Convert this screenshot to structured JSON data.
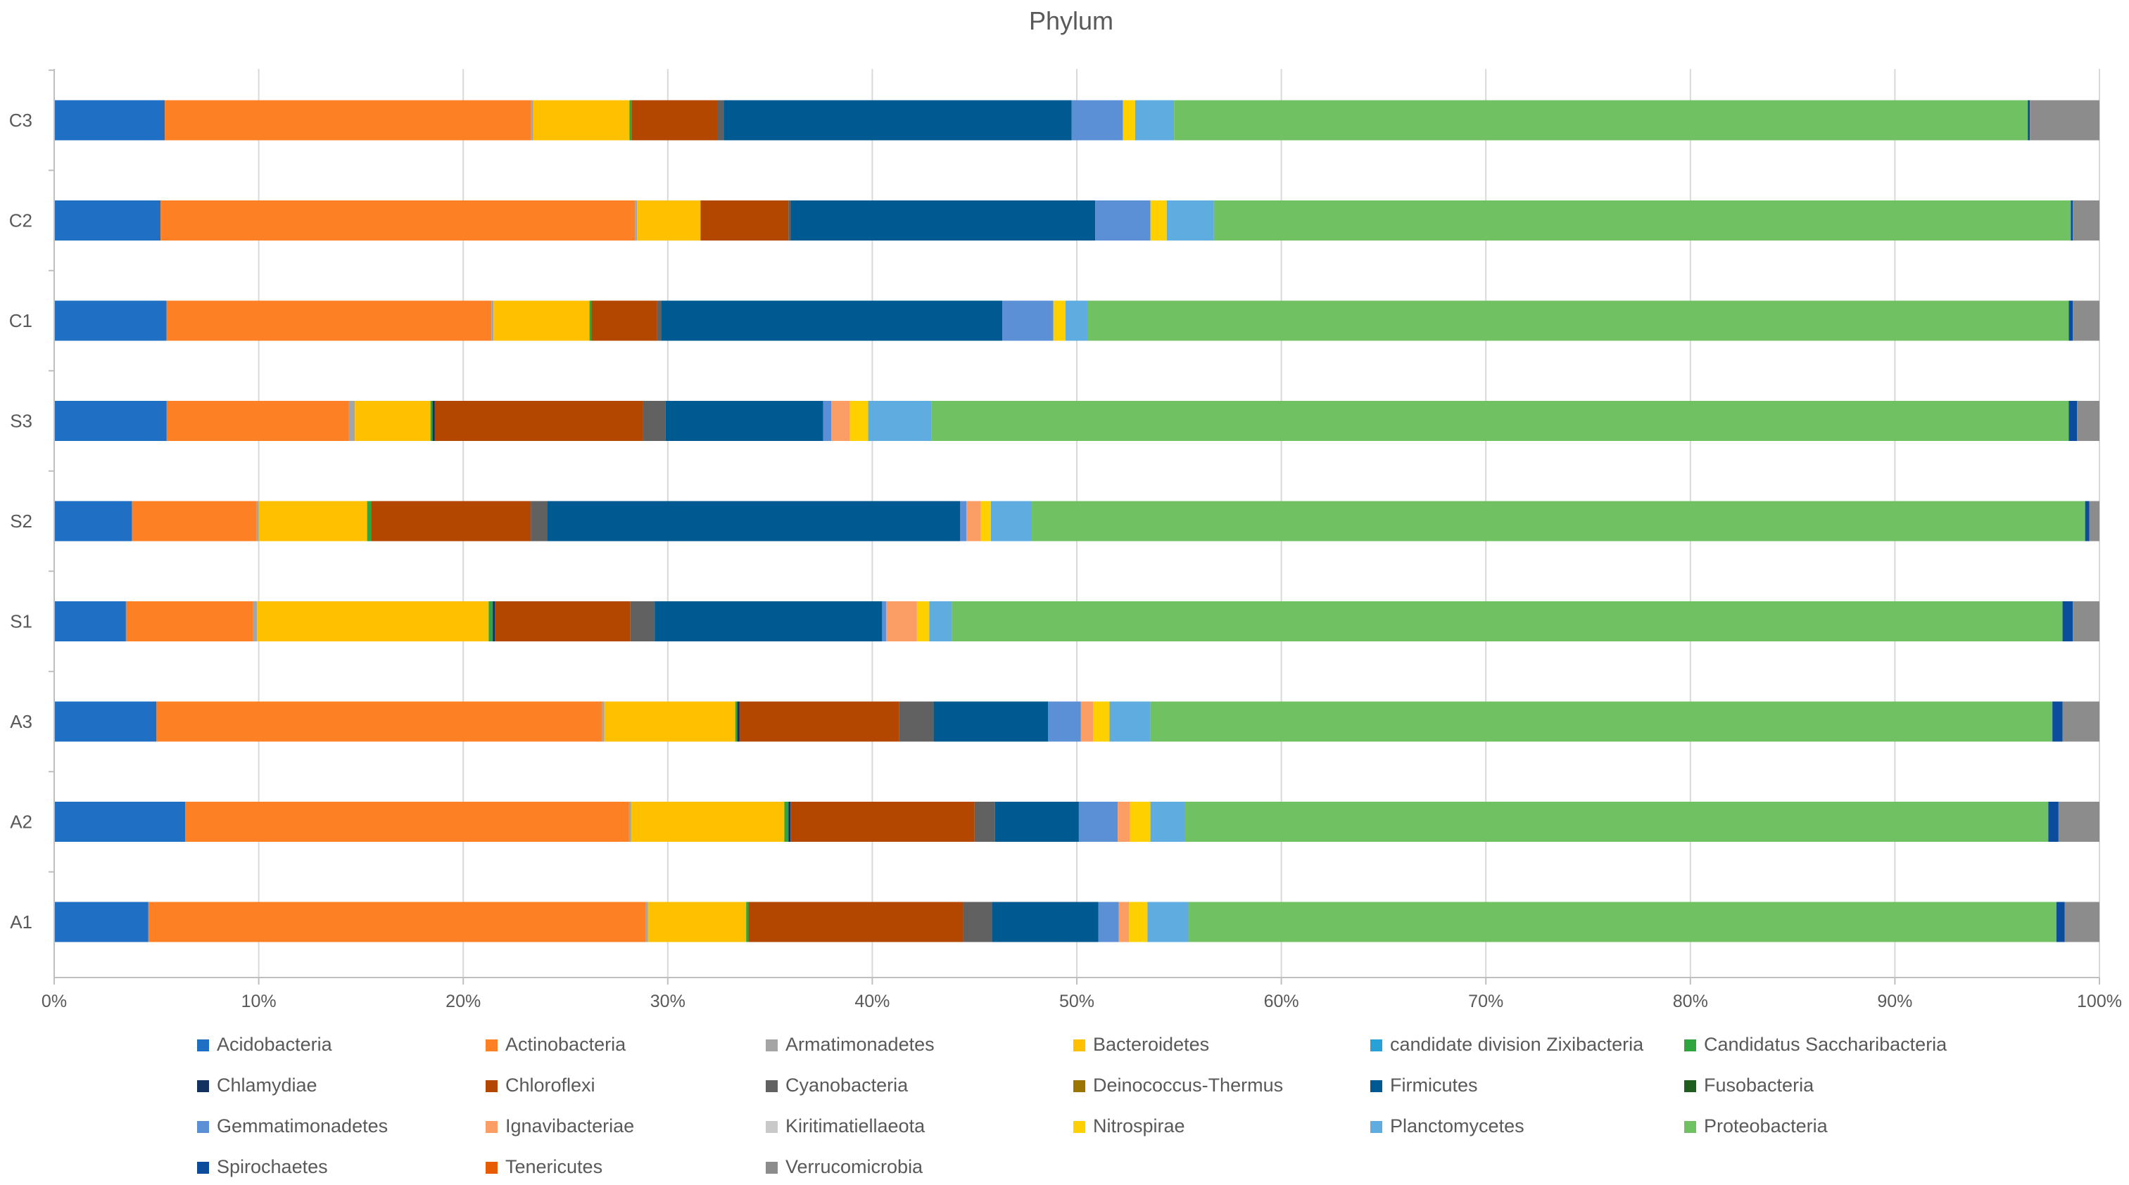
{
  "chart_data": {
    "type": "bar",
    "orientation": "horizontal",
    "stacked": "percent",
    "title": "Phylum",
    "xlabel": "",
    "ylabel": "",
    "xlim": [
      0,
      100
    ],
    "x_ticks": [
      "0%",
      "10%",
      "20%",
      "30%",
      "40%",
      "50%",
      "60%",
      "70%",
      "80%",
      "90%",
      "100%"
    ],
    "grid": "vertical",
    "legend_position": "bottom",
    "categories": [
      "C3",
      "C2",
      "C1",
      "S3",
      "S2",
      "S1",
      "A3",
      "A2",
      "A1"
    ],
    "series": [
      {
        "name": "Acidobacteria",
        "color": "#1f6fc5",
        "values": [
          5.4,
          5.2,
          5.5,
          5.5,
          3.8,
          3.5,
          5.0,
          6.4,
          4.6
        ]
      },
      {
        "name": "Actinobacteria",
        "color": "#fd8025",
        "values": [
          17.9,
          23.2,
          15.9,
          8.9,
          6.1,
          6.2,
          21.8,
          21.7,
          24.3
        ]
      },
      {
        "name": "Armatimonadetes",
        "color": "#a5a5a5",
        "values": [
          0.1,
          0.1,
          0.1,
          0.3,
          0.1,
          0.2,
          0.1,
          0.1,
          0.1
        ]
      },
      {
        "name": "Bacteroidetes",
        "color": "#ffc000",
        "values": [
          4.7,
          3.1,
          4.7,
          3.7,
          5.3,
          11.3,
          6.4,
          7.5,
          4.8
        ]
      },
      {
        "name": "candidate division Zixibacteria",
        "color": "#27a1d8",
        "values": [
          0.0,
          0.0,
          0.0,
          0.0,
          0.0,
          0.0,
          0.0,
          0.0,
          0.0
        ]
      },
      {
        "name": "Candidatus Saccharibacteria",
        "color": "#2ea63d",
        "values": [
          0.1,
          0.0,
          0.1,
          0.1,
          0.2,
          0.2,
          0.1,
          0.2,
          0.1
        ]
      },
      {
        "name": "Chlamydiae",
        "color": "#14325f",
        "values": [
          0.0,
          0.0,
          0.0,
          0.1,
          0.0,
          0.1,
          0.1,
          0.1,
          0.0
        ]
      },
      {
        "name": "Chloroflexi",
        "color": "#b44700",
        "values": [
          4.2,
          4.3,
          3.2,
          10.2,
          7.8,
          6.6,
          7.8,
          9.0,
          10.5
        ]
      },
      {
        "name": "Cyanobacteria",
        "color": "#616161",
        "values": [
          0.3,
          0.1,
          0.2,
          1.1,
          0.8,
          1.2,
          1.7,
          1.0,
          1.4
        ]
      },
      {
        "name": "Deinococcus-Thermus",
        "color": "#9c7400",
        "values": [
          0.0,
          0.0,
          0.0,
          0.0,
          0.0,
          0.0,
          0.0,
          0.0,
          0.0
        ]
      },
      {
        "name": "Firmicutes",
        "color": "#005a92",
        "values": [
          17.0,
          14.9,
          16.7,
          7.7,
          20.2,
          11.1,
          5.6,
          4.1,
          5.2
        ]
      },
      {
        "name": "Fusobacteria",
        "color": "#1f5e1f",
        "values": [
          0.0,
          0.0,
          0.0,
          0.0,
          0.0,
          0.0,
          0.0,
          0.0,
          0.0
        ]
      },
      {
        "name": "Gemmatimonadetes",
        "color": "#5b8fd6",
        "values": [
          2.5,
          2.7,
          2.5,
          0.4,
          0.3,
          0.2,
          1.6,
          1.9,
          1.0
        ]
      },
      {
        "name": "Ignavibacteriae",
        "color": "#fb9e66",
        "values": [
          0.0,
          0.0,
          0.0,
          0.9,
          0.7,
          1.5,
          0.6,
          0.6,
          0.5
        ]
      },
      {
        "name": "Kiritimatiellaeota",
        "color": "#c9c9c9",
        "values": [
          0.0,
          0.0,
          0.0,
          0.0,
          0.0,
          0.0,
          0.0,
          0.0,
          0.0
        ]
      },
      {
        "name": "Nitrospirae",
        "color": "#ffd000",
        "values": [
          0.6,
          0.8,
          0.6,
          0.9,
          0.5,
          0.6,
          0.8,
          1.0,
          0.9
        ]
      },
      {
        "name": "Planctomycetes",
        "color": "#5eace0",
        "values": [
          1.9,
          2.3,
          1.1,
          3.1,
          2.0,
          1.1,
          2.0,
          1.7,
          2.0
        ]
      },
      {
        "name": "Proteobacteria",
        "color": "#70c161",
        "values": [
          41.7,
          41.9,
          48.0,
          55.6,
          51.5,
          54.2,
          44.1,
          42.2,
          42.4
        ]
      },
      {
        "name": "Spirochaetes",
        "color": "#0b4d9c",
        "values": [
          0.1,
          0.1,
          0.2,
          0.4,
          0.2,
          0.5,
          0.5,
          0.5,
          0.4
        ]
      },
      {
        "name": "Tenericutes",
        "color": "#e65c00",
        "values": [
          0.0,
          0.0,
          0.0,
          0.0,
          0.0,
          0.0,
          0.0,
          0.0,
          0.0
        ]
      },
      {
        "name": "Verrucomicrobia",
        "color": "#8c8c8c",
        "values": [
          3.4,
          1.3,
          1.3,
          1.1,
          0.5,
          1.3,
          1.8,
          2.0,
          1.7
        ]
      }
    ]
  }
}
